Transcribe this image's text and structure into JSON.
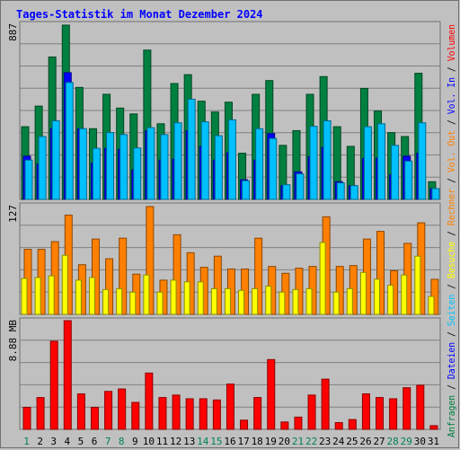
{
  "chart_data": {
    "type": "bar",
    "title": "Tages-Statistik im Monat Dezember 2024",
    "days": [
      "1",
      "2",
      "3",
      "4",
      "5",
      "6",
      "7",
      "8",
      "9",
      "10",
      "11",
      "12",
      "13",
      "14",
      "15",
      "16",
      "17",
      "18",
      "19",
      "20",
      "21",
      "22",
      "23",
      "24",
      "25",
      "26",
      "27",
      "28",
      "29",
      "30",
      "31"
    ],
    "weekend_days": [
      "1",
      "7",
      "8",
      "14",
      "15",
      "21",
      "22",
      "28",
      "29"
    ],
    "panels": [
      {
        "id": "requests",
        "ymax_label": "887",
        "ymax": 887,
        "series": [
          {
            "name": "Anfragen",
            "color": "#008040",
            "values": [
              370,
              475,
              725,
              887,
              570,
              360,
              535,
              465,
              435,
              760,
              385,
              590,
              635,
              500,
              445,
              495,
              235,
              535,
              605,
              275,
              350,
              535,
              625,
              370,
              270,
              565,
              450,
              340,
              320,
              642,
              90
            ]
          },
          {
            "name": "Dateien",
            "color": "#0000ff",
            "values": [
              220,
              180,
              360,
              645,
              360,
              185,
              260,
              255,
              150,
              350,
              200,
              205,
              350,
              270,
              200,
              238,
              100,
              200,
              335,
              70,
              140,
              218,
              265,
              90,
              70,
              208,
              210,
              125,
              220,
              235,
              55
            ]
          },
          {
            "name": "Seiten",
            "color": "#00c0ff",
            "values": [
              200,
              320,
              400,
              595,
              360,
              260,
              340,
              330,
              262,
              365,
              330,
              390,
              510,
              395,
              324,
              405,
              95,
              360,
              310,
              75,
              130,
              372,
              400,
              84,
              70,
              370,
              385,
              275,
              195,
              390,
              55
            ]
          }
        ]
      },
      {
        "id": "visits",
        "ymax_label": "127",
        "ymax": 127,
        "series": [
          {
            "name": "Rechner",
            "color": "#ff8000",
            "values": [
              76,
              76,
              85,
              116,
              58,
              88,
              65,
              89,
              47,
              126,
              40,
              93,
              72,
              55,
              68,
              53,
              53,
              89,
              56,
              48,
              54,
              56,
              114,
              56,
              57,
              88,
              97,
              51,
              83,
              107,
              41
            ]
          },
          {
            "name": "Besuche",
            "color": "#ffff00",
            "values": [
              42,
              43,
              45,
              69,
              40,
              43,
              29,
              30,
              26,
              46,
              26,
              40,
              38,
              38,
              30,
              30,
              28,
              30,
              33,
              26,
              29,
              30,
              84,
              26,
              30,
              49,
              41,
              34,
              46,
              68,
              21
            ]
          }
        ]
      },
      {
        "id": "volume",
        "ymax_label": "8.88 MB",
        "ymax": 8.88,
        "series": [
          {
            "name": "Volumen",
            "color": "#ff0000",
            "values": [
              1.8,
              2.6,
              7.2,
              8.88,
              2.9,
              1.8,
              3.1,
              3.3,
              2.2,
              4.6,
              2.6,
              2.8,
              2.5,
              2.5,
              2.4,
              3.7,
              0.75,
              2.6,
              5.7,
              0.6,
              1.0,
              2.8,
              4.1,
              0.55,
              0.8,
              2.9,
              2.6,
              2.5,
              3.4,
              3.6,
              0.3
            ]
          }
        ]
      }
    ],
    "right_labels": [
      {
        "text": "Anfragen",
        "color": "#008040"
      },
      {
        "text": " / ",
        "color": "#000000"
      },
      {
        "text": "Dateien",
        "color": "#0000ff"
      },
      {
        "text": " / ",
        "color": "#000000"
      },
      {
        "text": "Seiten",
        "color": "#00c0ff"
      },
      {
        "text": " / ",
        "color": "#000000"
      },
      {
        "text": "Besuche",
        "color": "#ffff00"
      },
      {
        "text": " / ",
        "color": "#000000"
      },
      {
        "text": "Rechner",
        "color": "#ff8000"
      },
      {
        "text": " / ",
        "color": "#000000"
      },
      {
        "text": "Vol. Out",
        "color": "#ff8000"
      },
      {
        "text": " / ",
        "color": "#000000"
      },
      {
        "text": "Vol. In",
        "color": "#0000ff"
      },
      {
        "text": " / ",
        "color": "#000000"
      },
      {
        "text": "Volumen",
        "color": "#ff0000"
      }
    ],
    "grid": true,
    "colors": {
      "background": "#c0c0c0",
      "weekday_label": "#000000",
      "weekend_label": "#00805c",
      "title": "#0000ff"
    }
  }
}
